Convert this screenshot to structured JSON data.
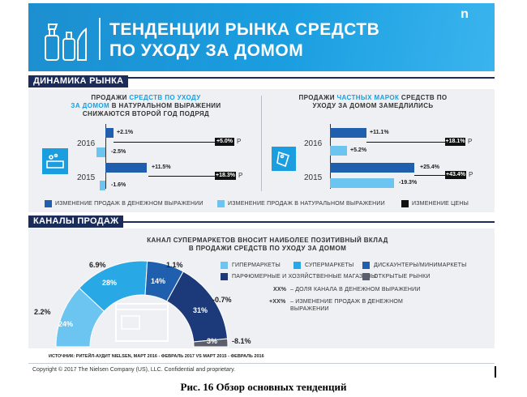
{
  "header": {
    "title_line1": "ТЕНДЕНЦИИ РЫНКА СРЕДСТВ",
    "title_line2": "ПО УХОДУ ЗА ДОМОМ",
    "logo": "n"
  },
  "market": {
    "section_title": "ДИНАМИКА РЫНКА",
    "left": {
      "text_1": "ПРОДАЖИ",
      "text_hl": "СРЕДСТВ ПО УХОДУ",
      "text_hl2": "ЗА ДОМОМ",
      "text_2": "В НАТУРАЛЬНОМ ВЫРАЖЕНИИ",
      "text_3": "СНИЖАЮТСЯ ВТОРОЙ ГОД ПОДРЯД",
      "year_2016": "2016",
      "year_2015": "2015",
      "v2016_money": "+2.1%",
      "v2016_nat": "-2.5%",
      "v2016_price": "+5.0%",
      "v2015_money": "+11.5%",
      "v2015_nat": "-1.6%",
      "v2015_price": "+18.3%",
      "rub": "Р"
    },
    "right": {
      "text_1": "ПРОДАЖИ",
      "text_hl": "ЧАСТНЫХ МАРОК",
      "text_2": "СРЕДСТВ ПО",
      "text_3": "УХОДУ ЗА ДОМОМ ЗАМЕДЛИЛИСЬ",
      "year_2016": "2016",
      "year_2015": "2015",
      "v2016_money": "+11.1%",
      "v2016_nat": "+5.2%",
      "v2016_price": "+18.1%",
      "v2015_money": "+25.4%",
      "v2015_nat": "-19.3%",
      "v2015_price": "+43.4%",
      "rub": "Р"
    },
    "legend": {
      "money": "ИЗМЕНЕНИЕ ПРОДАЖ В ДЕНЕЖНОМ ВЫРАЖЕНИИ",
      "natural": "ИЗМЕНЕНИЕ ПРОДАЖ В НАТУРАЛЬНОМ ВЫРАЖЕНИИ",
      "price": "ИЗМЕНЕНИЕ ЦЕНЫ"
    },
    "colors": {
      "money": "#1f5fad",
      "natural": "#6cc4f0",
      "price": "#111111",
      "accent": "#1a9ee0"
    }
  },
  "channels": {
    "section_title": "КАНАЛЫ ПРОДАЖ",
    "intro_1": "КАНАЛ СУПЕРМАРКЕТОВ ВНОСИТ НАИБОЛЕЕ ПОЗИТИВНЫЙ ВКЛАД",
    "intro_2": "В ПРОДАЖИ СРЕДСТВ ПО УХОДУ ЗА ДОМОМ",
    "segments": [
      {
        "name": "ГИПЕРМАРКЕТЫ",
        "share": "24%",
        "change": "2.2%",
        "color": "#6cc4f0"
      },
      {
        "name": "СУПЕРМАРКЕТЫ",
        "share": "28%",
        "change": "6.9%",
        "color": "#29a8e6"
      },
      {
        "name": "ДИСКАУНТЕРЫ/МИНИМАРКЕТЫ",
        "share": "14%",
        "change": "1.1%",
        "color": "#1f5fad"
      },
      {
        "name": "ПАРФЮМЕРНЫЕ И ХОЗЯЙСТВЕННЫЕ МАГАЗИНЫ",
        "share": "31%",
        "change": "-0.7%",
        "color": "#1c3a7a"
      },
      {
        "name": "ОТКРЫТЫЕ РЫНКИ",
        "share": "3%",
        "change": "-8.1%",
        "color": "#5a5f6b"
      }
    ],
    "note_1_key": "XX%",
    "note_1": "– ДОЛЯ КАНАЛА В ДЕНЕЖНОМ ВЫРАЖЕНИИ",
    "note_2_key": "+XX%",
    "note_2_a": "– ИЗМЕНЕНИЕ ПРОДАЖ В ДЕНЕЖНОМ",
    "note_2_b": "ВЫРАЖЕНИИ"
  },
  "footer": {
    "source": "ИСТОЧНИК: РИТЕЙЛ-АУДИТ NIELSEN, МАРТ 2016 - ФЕВРАЛЬ 2017 VS МАРТ 2015 - ФЕВРАЛЬ 2016",
    "copyright": "Copyright © 2017 The Nielsen Company (US), LLC. Confidential and proprietary."
  },
  "caption": "Рис. 16 Обзор основных тенденций"
}
